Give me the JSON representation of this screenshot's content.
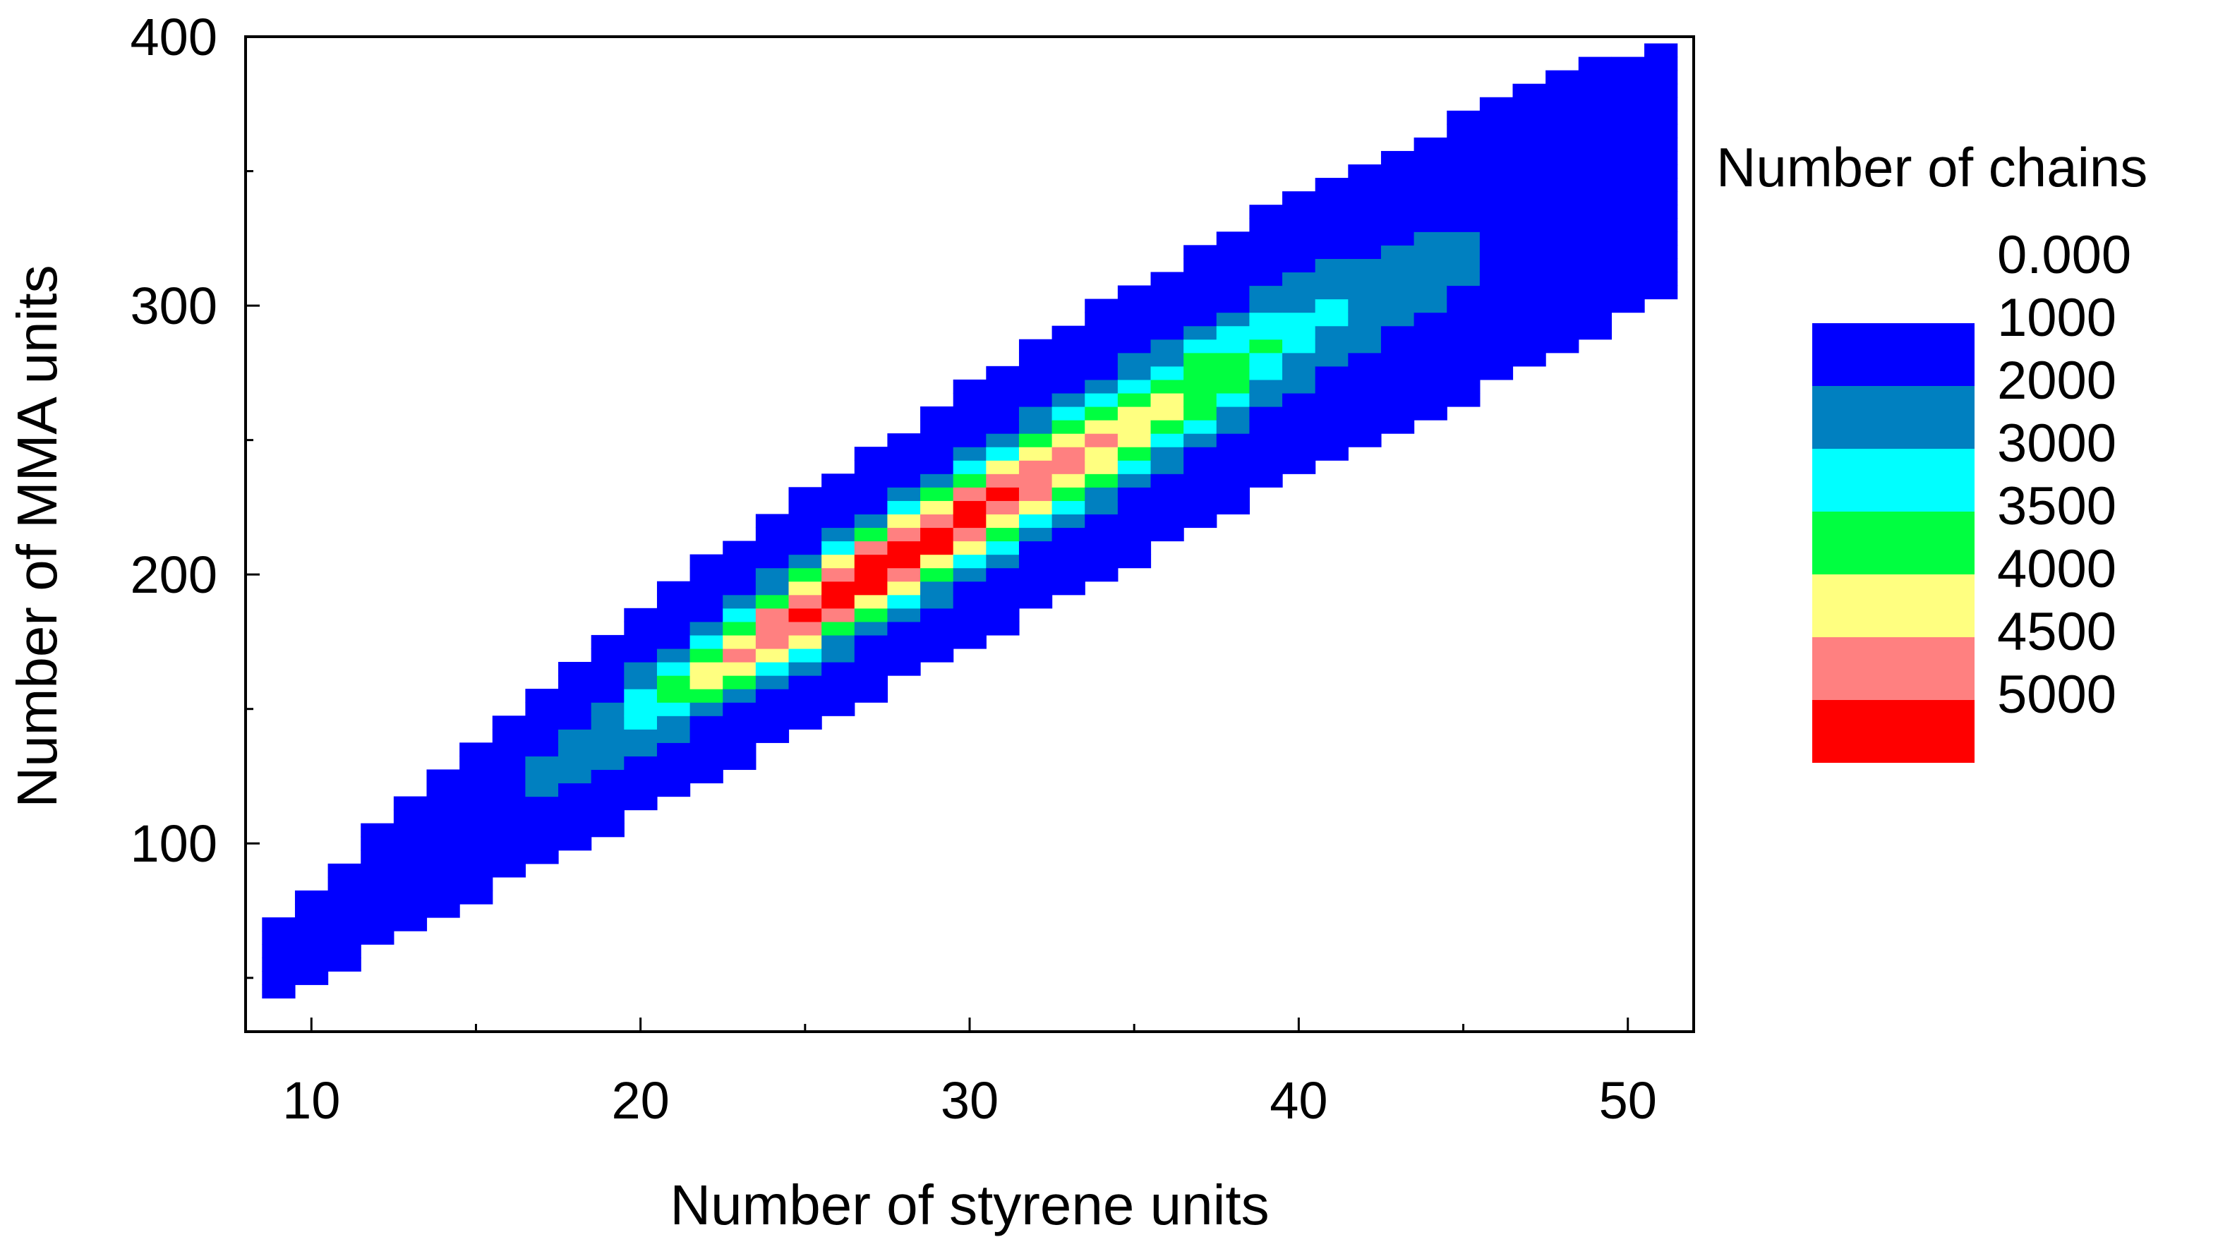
{
  "chart_data": {
    "type": "heatmap",
    "title": "",
    "xlabel": "Number of styrene units",
    "ylabel": "Number of MMA units",
    "xlim": [
      8,
      52
    ],
    "ylim": [
      30,
      400
    ],
    "xticks": [
      10,
      20,
      30,
      40,
      50
    ],
    "yticks": [
      100,
      200,
      300,
      400
    ],
    "grid": false,
    "legend_title": "Number of chains",
    "legend_placement": "right",
    "levels": [
      {
        "label": "0.000",
        "color": null
      },
      {
        "label": "1000",
        "color": "#0000FF"
      },
      {
        "label": "2000",
        "color": "#0080C0"
      },
      {
        "label": "3000",
        "color": "#00FFFF"
      },
      {
        "label": "3500",
        "color": "#00FF40"
      },
      {
        "label": "4000",
        "color": "#FFFF80"
      },
      {
        "label": "4500",
        "color": "#FF8080"
      },
      {
        "label": "5000",
        "color": "#FF0000"
      }
    ],
    "band_center_ymma_at_x": [
      [
        9,
        58
      ],
      [
        20,
        150
      ],
      [
        30,
        222
      ],
      [
        40,
        290
      ],
      [
        50,
        345
      ]
    ],
    "regions": [
      {
        "level": "0.000-1000",
        "x": [
          9,
          51
        ],
        "y_min": 40,
        "y_max": 388
      },
      {
        "level": "1000-2000",
        "x": [
          14,
          44
        ],
        "y_min": 80,
        "y_max": 335
      },
      {
        "level": "2000-3000",
        "x": [
          17,
          40
        ],
        "y_min": 108,
        "y_max": 297
      },
      {
        "level": "3000-3500",
        "x": [
          18,
          38
        ],
        "y_min": 120,
        "y_max": 275
      },
      {
        "level": "3500-4000",
        "x": [
          19,
          36
        ],
        "y_min": 130,
        "y_max": 264
      },
      {
        "level": "4000-4500",
        "x": [
          22,
          33
        ],
        "y_min": 150,
        "y_max": 242
      },
      {
        "level": "4500-5000",
        "x": [
          25,
          30
        ],
        "y_min": 168,
        "y_max": 222
      }
    ],
    "peak": {
      "x": 27,
      "y": 195
    }
  }
}
